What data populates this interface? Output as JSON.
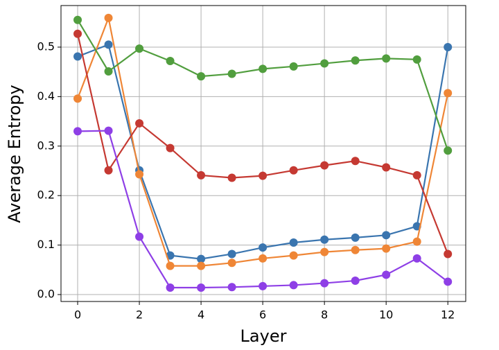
{
  "chart_data": {
    "type": "line",
    "x_label": "Layer",
    "y_label": "Average Entropy",
    "x": [
      0,
      1,
      2,
      3,
      4,
      5,
      6,
      7,
      8,
      9,
      10,
      11,
      12
    ],
    "series": [
      {
        "color": "#3a75af",
        "values": [
          0.481,
          0.505,
          0.251,
          0.079,
          0.072,
          0.082,
          0.095,
          0.105,
          0.111,
          0.115,
          0.12,
          0.138,
          0.5
        ]
      },
      {
        "color": "#ef8636",
        "values": [
          0.396,
          0.559,
          0.243,
          0.058,
          0.058,
          0.064,
          0.073,
          0.079,
          0.086,
          0.09,
          0.093,
          0.107,
          0.407
        ]
      },
      {
        "color": "#519e3e",
        "values": [
          0.555,
          0.451,
          0.497,
          0.472,
          0.441,
          0.446,
          0.456,
          0.461,
          0.467,
          0.473,
          0.477,
          0.475,
          0.291
        ]
      },
      {
        "color": "#c53932",
        "values": [
          0.527,
          0.251,
          0.346,
          0.296,
          0.241,
          0.236,
          0.24,
          0.251,
          0.261,
          0.27,
          0.257,
          0.241,
          0.082
        ]
      },
      {
        "color": "#8e3fe6",
        "values": [
          0.33,
          0.331,
          0.117,
          0.014,
          0.014,
          0.015,
          0.017,
          0.019,
          0.023,
          0.028,
          0.04,
          0.073,
          0.026
        ]
      }
    ],
    "xlim": [
      -0.54,
      12.58
    ],
    "ylim": [
      -0.014,
      0.584
    ],
    "xticks": [
      0,
      2,
      4,
      6,
      8,
      10,
      12
    ],
    "yticks": [
      {
        "value": 0,
        "label": "0.0"
      },
      0.1,
      0.2,
      0.3,
      0.4,
      0.5
    ],
    "grid": true
  }
}
